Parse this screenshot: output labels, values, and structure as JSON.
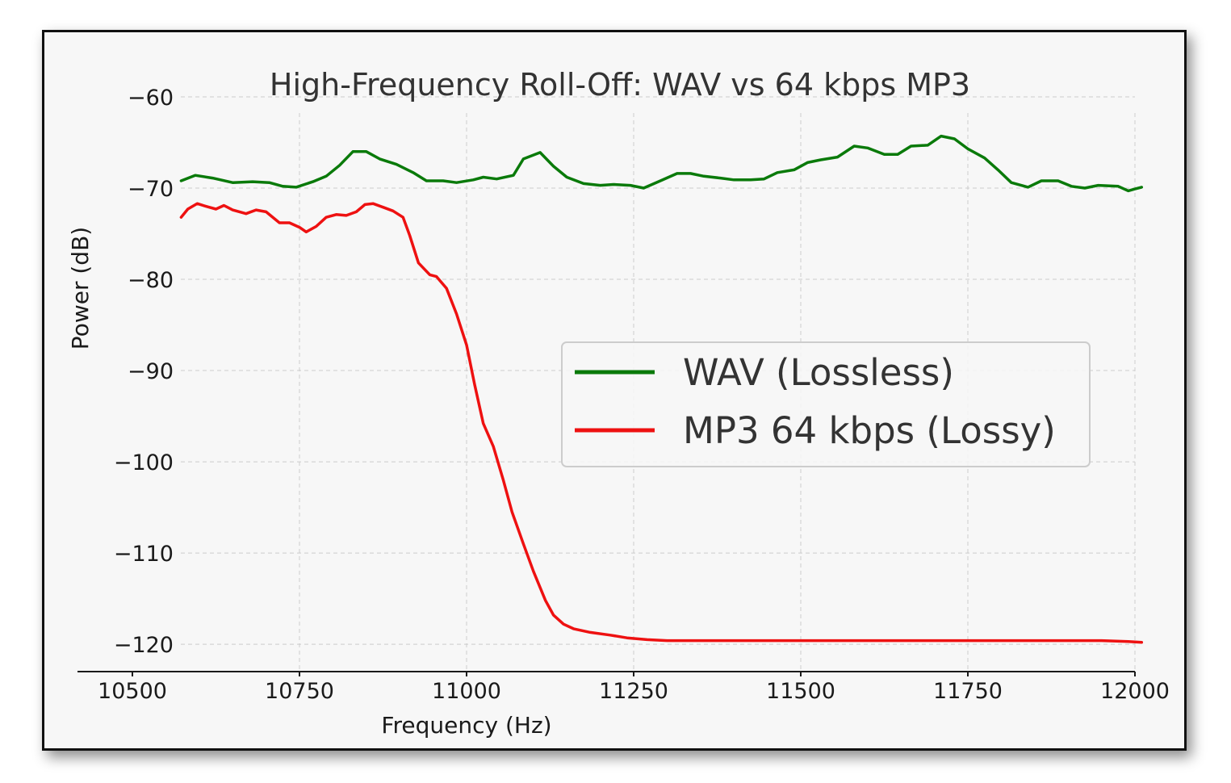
{
  "chart_data": {
    "type": "line",
    "title": "High-Frequency Roll-Off: WAV vs 64 kbps MP3",
    "xlabel": "Frequency (Hz)",
    "ylabel": "Power (dB)",
    "xlim": [
      10500,
      12000
    ],
    "ylim": [
      -123,
      -60
    ],
    "x_ticks": [
      10500,
      10750,
      11000,
      11250,
      11500,
      11750,
      12000
    ],
    "x_tick_labels": [
      "10500",
      "10750",
      "11000",
      "11250",
      "11500",
      "11750",
      "12000"
    ],
    "y_ticks": [
      -60,
      -70,
      -80,
      -90,
      -100,
      -110,
      -120
    ],
    "y_tick_labels": [
      "−60",
      "−70",
      "−80",
      "−90",
      "−100",
      "−110",
      "−120"
    ],
    "grid": true,
    "legend_position": "center-right",
    "series": [
      {
        "name": "WAV (Lossless)",
        "color": "#0a7a0a",
        "points": [
          [
            10573,
            -69.2
          ],
          [
            10594,
            -68.6
          ],
          [
            10620,
            -68.9
          ],
          [
            10650,
            -69.4
          ],
          [
            10680,
            -69.3
          ],
          [
            10705,
            -69.4
          ],
          [
            10725,
            -69.8
          ],
          [
            10745,
            -69.9
          ],
          [
            10770,
            -69.3
          ],
          [
            10790,
            -68.7
          ],
          [
            10810,
            -67.5
          ],
          [
            10830,
            -66.0
          ],
          [
            10850,
            -66.0
          ],
          [
            10870,
            -66.8
          ],
          [
            10895,
            -67.4
          ],
          [
            10920,
            -68.3
          ],
          [
            10940,
            -69.2
          ],
          [
            10965,
            -69.2
          ],
          [
            10985,
            -69.4
          ],
          [
            11010,
            -69.1
          ],
          [
            11025,
            -68.8
          ],
          [
            11045,
            -69.0
          ],
          [
            11070,
            -68.6
          ],
          [
            11085,
            -66.8
          ],
          [
            11110,
            -66.1
          ],
          [
            11130,
            -67.6
          ],
          [
            11150,
            -68.8
          ],
          [
            11175,
            -69.5
          ],
          [
            11200,
            -69.7
          ],
          [
            11220,
            -69.6
          ],
          [
            11245,
            -69.7
          ],
          [
            11265,
            -70.0
          ],
          [
            11290,
            -69.2
          ],
          [
            11315,
            -68.4
          ],
          [
            11335,
            -68.4
          ],
          [
            11355,
            -68.7
          ],
          [
            11380,
            -68.9
          ],
          [
            11400,
            -69.1
          ],
          [
            11425,
            -69.1
          ],
          [
            11445,
            -69.0
          ],
          [
            11465,
            -68.3
          ],
          [
            11490,
            -68.0
          ],
          [
            11510,
            -67.2
          ],
          [
            11530,
            -66.9
          ],
          [
            11555,
            -66.6
          ],
          [
            11580,
            -65.4
          ],
          [
            11600,
            -65.6
          ],
          [
            11625,
            -66.3
          ],
          [
            11645,
            -66.3
          ],
          [
            11665,
            -65.4
          ],
          [
            11690,
            -65.3
          ],
          [
            11710,
            -64.3
          ],
          [
            11730,
            -64.6
          ],
          [
            11750,
            -65.7
          ],
          [
            11775,
            -66.7
          ],
          [
            11795,
            -68.0
          ],
          [
            11815,
            -69.4
          ],
          [
            11840,
            -69.9
          ],
          [
            11860,
            -69.2
          ],
          [
            11885,
            -69.2
          ],
          [
            11905,
            -69.8
          ],
          [
            11925,
            -70.0
          ],
          [
            11945,
            -69.7
          ],
          [
            11975,
            -69.8
          ],
          [
            11990,
            -70.3
          ],
          [
            12000,
            -70.1
          ],
          [
            12010,
            -69.9
          ]
        ]
      },
      {
        "name": "MP3 64 kbps (Lossy)",
        "color": "#ee1111",
        "points": [
          [
            10573,
            -73.2
          ],
          [
            10583,
            -72.3
          ],
          [
            10597,
            -71.7
          ],
          [
            10610,
            -72.0
          ],
          [
            10625,
            -72.3
          ],
          [
            10637,
            -71.9
          ],
          [
            10650,
            -72.4
          ],
          [
            10670,
            -72.8
          ],
          [
            10685,
            -72.4
          ],
          [
            10700,
            -72.6
          ],
          [
            10720,
            -73.8
          ],
          [
            10735,
            -73.8
          ],
          [
            10750,
            -74.3
          ],
          [
            10760,
            -74.8
          ],
          [
            10775,
            -74.2
          ],
          [
            10790,
            -73.2
          ],
          [
            10805,
            -72.9
          ],
          [
            10820,
            -73.0
          ],
          [
            10835,
            -72.6
          ],
          [
            10848,
            -71.8
          ],
          [
            10860,
            -71.7
          ],
          [
            10875,
            -72.1
          ],
          [
            10890,
            -72.5
          ],
          [
            10905,
            -73.2
          ],
          [
            10915,
            -75.2
          ],
          [
            10928,
            -78.2
          ],
          [
            10945,
            -79.5
          ],
          [
            10955,
            -79.7
          ],
          [
            10970,
            -81.0
          ],
          [
            10985,
            -83.8
          ],
          [
            11000,
            -87.2
          ],
          [
            11012,
            -91.5
          ],
          [
            11025,
            -95.8
          ],
          [
            11040,
            -98.3
          ],
          [
            11055,
            -102.0
          ],
          [
            11068,
            -105.5
          ],
          [
            11085,
            -109.0
          ],
          [
            11100,
            -112.0
          ],
          [
            11118,
            -115.2
          ],
          [
            11130,
            -116.8
          ],
          [
            11145,
            -117.8
          ],
          [
            11160,
            -118.3
          ],
          [
            11185,
            -118.7
          ],
          [
            11215,
            -119.0
          ],
          [
            11240,
            -119.3
          ],
          [
            11270,
            -119.5
          ],
          [
            11300,
            -119.6
          ],
          [
            11350,
            -119.6
          ],
          [
            11450,
            -119.6
          ],
          [
            11550,
            -119.6
          ],
          [
            11650,
            -119.6
          ],
          [
            11750,
            -119.6
          ],
          [
            11850,
            -119.6
          ],
          [
            11950,
            -119.6
          ],
          [
            11990,
            -119.7
          ],
          [
            12010,
            -119.8
          ]
        ]
      }
    ]
  }
}
